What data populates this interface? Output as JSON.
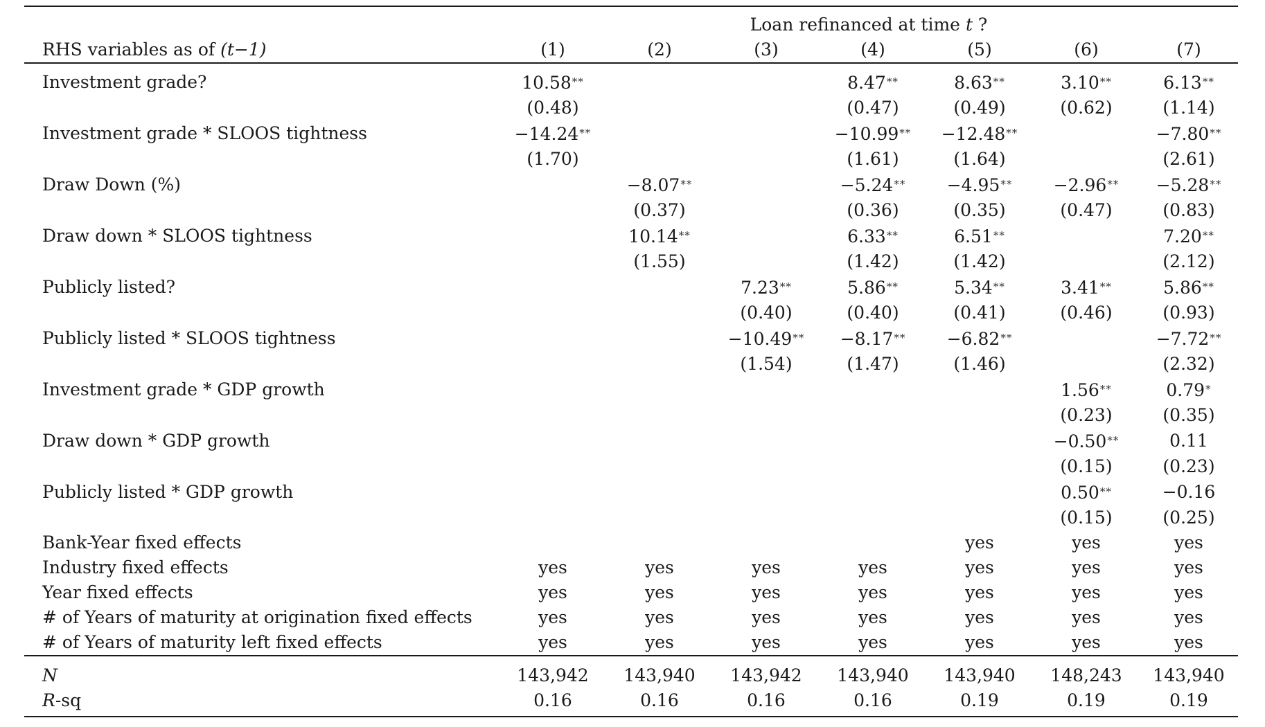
{
  "table": {
    "super_header": "Loan refinanced at time t ?",
    "super_header_prefix": "Loan refinanced at time ",
    "super_header_var": "t",
    "super_header_suffix": " ?",
    "rhs_label_prefix": "RHS variables as of ",
    "rhs_label_var": "(t−1)",
    "columns": [
      "(1)",
      "(2)",
      "(3)",
      "(4)",
      "(5)",
      "(6)",
      "(7)"
    ],
    "coefficients": [
      {
        "label": "Investment grade?",
        "coef": [
          "10.58",
          "",
          "",
          "8.47",
          "8.63",
          "3.10",
          "6.13"
        ],
        "stars": [
          "**",
          "",
          "",
          "**",
          "**",
          "**",
          "**"
        ],
        "se": [
          "(0.48)",
          "",
          "",
          "(0.47)",
          "(0.49)",
          "(0.62)",
          "(1.14)"
        ]
      },
      {
        "label": "Investment grade * SLOOS tightness",
        "coef": [
          "−14.24",
          "",
          "",
          "−10.99",
          "−12.48",
          "",
          "−7.80"
        ],
        "stars": [
          "**",
          "",
          "",
          "**",
          "**",
          "",
          "**"
        ],
        "se": [
          "(1.70)",
          "",
          "",
          "(1.61)",
          "(1.64)",
          "",
          "(2.61)"
        ]
      },
      {
        "label": "Draw Down (%)",
        "coef": [
          "",
          "−8.07",
          "",
          "−5.24",
          "−4.95",
          "−2.96",
          "−5.28"
        ],
        "stars": [
          "",
          "**",
          "",
          "**",
          "**",
          "**",
          "**"
        ],
        "se": [
          "",
          "(0.37)",
          "",
          "(0.36)",
          "(0.35)",
          "(0.47)",
          "(0.83)"
        ]
      },
      {
        "label": "Draw down * SLOOS tightness",
        "coef": [
          "",
          "10.14",
          "",
          "6.33",
          "6.51",
          "",
          "7.20"
        ],
        "stars": [
          "",
          "**",
          "",
          "**",
          "**",
          "",
          "**"
        ],
        "se": [
          "",
          "(1.55)",
          "",
          "(1.42)",
          "(1.42)",
          "",
          "(2.12)"
        ]
      },
      {
        "label": "Publicly listed?",
        "coef": [
          "",
          "",
          "7.23",
          "5.86",
          "5.34",
          "3.41",
          "5.86"
        ],
        "stars": [
          "",
          "",
          "**",
          "**",
          "**",
          "**",
          "**"
        ],
        "se": [
          "",
          "",
          "(0.40)",
          "(0.40)",
          "(0.41)",
          "(0.46)",
          "(0.93)"
        ]
      },
      {
        "label": "Publicly listed * SLOOS tightness",
        "coef": [
          "",
          "",
          "−10.49",
          "−8.17",
          "−6.82",
          "",
          "−7.72"
        ],
        "stars": [
          "",
          "",
          "**",
          "**",
          "**",
          "",
          "**"
        ],
        "se": [
          "",
          "",
          "(1.54)",
          "(1.47)",
          "(1.46)",
          "",
          "(2.32)"
        ]
      },
      {
        "label": "Investment grade * GDP growth",
        "coef": [
          "",
          "",
          "",
          "",
          "",
          "1.56",
          "0.79"
        ],
        "stars": [
          "",
          "",
          "",
          "",
          "",
          "**",
          "*"
        ],
        "se": [
          "",
          "",
          "",
          "",
          "",
          "(0.23)",
          "(0.35)"
        ]
      },
      {
        "label": "Draw down * GDP growth",
        "coef": [
          "",
          "",
          "",
          "",
          "",
          "−0.50",
          "0.11"
        ],
        "stars": [
          "",
          "",
          "",
          "",
          "",
          "**",
          ""
        ],
        "se": [
          "",
          "",
          "",
          "",
          "",
          "(0.15)",
          "(0.23)"
        ]
      },
      {
        "label": "Publicly listed * GDP growth",
        "coef": [
          "",
          "",
          "",
          "",
          "",
          "0.50",
          "−0.16"
        ],
        "stars": [
          "",
          "",
          "",
          "",
          "",
          "**",
          ""
        ],
        "se": [
          "",
          "",
          "",
          "",
          "",
          "(0.15)",
          "(0.25)"
        ]
      }
    ],
    "fixed_effects": [
      {
        "label": "Bank-Year fixed effects",
        "values": [
          "",
          "",
          "",
          "",
          "yes",
          "yes",
          "yes"
        ]
      },
      {
        "label": "Industry fixed effects",
        "values": [
          "yes",
          "yes",
          "yes",
          "yes",
          "yes",
          "yes",
          "yes"
        ]
      },
      {
        "label": "Year fixed effects",
        "values": [
          "yes",
          "yes",
          "yes",
          "yes",
          "yes",
          "yes",
          "yes"
        ]
      },
      {
        "label": "# of Years of maturity at origination fixed effects",
        "values": [
          "yes",
          "yes",
          "yes",
          "yes",
          "yes",
          "yes",
          "yes"
        ]
      },
      {
        "label": "# of Years of maturity left fixed effects",
        "values": [
          "yes",
          "yes",
          "yes",
          "yes",
          "yes",
          "yes",
          "yes"
        ]
      }
    ],
    "stats": [
      {
        "label": "N",
        "label_italic": "N",
        "label_rest": "",
        "values": [
          "143,942",
          "143,940",
          "143,942",
          "143,940",
          "143,940",
          "148,243",
          "143,940"
        ]
      },
      {
        "label": "R-sq",
        "label_italic": "R",
        "label_rest": "-sq",
        "values": [
          "0.16",
          "0.16",
          "0.16",
          "0.16",
          "0.19",
          "0.19",
          "0.19"
        ]
      }
    ]
  }
}
